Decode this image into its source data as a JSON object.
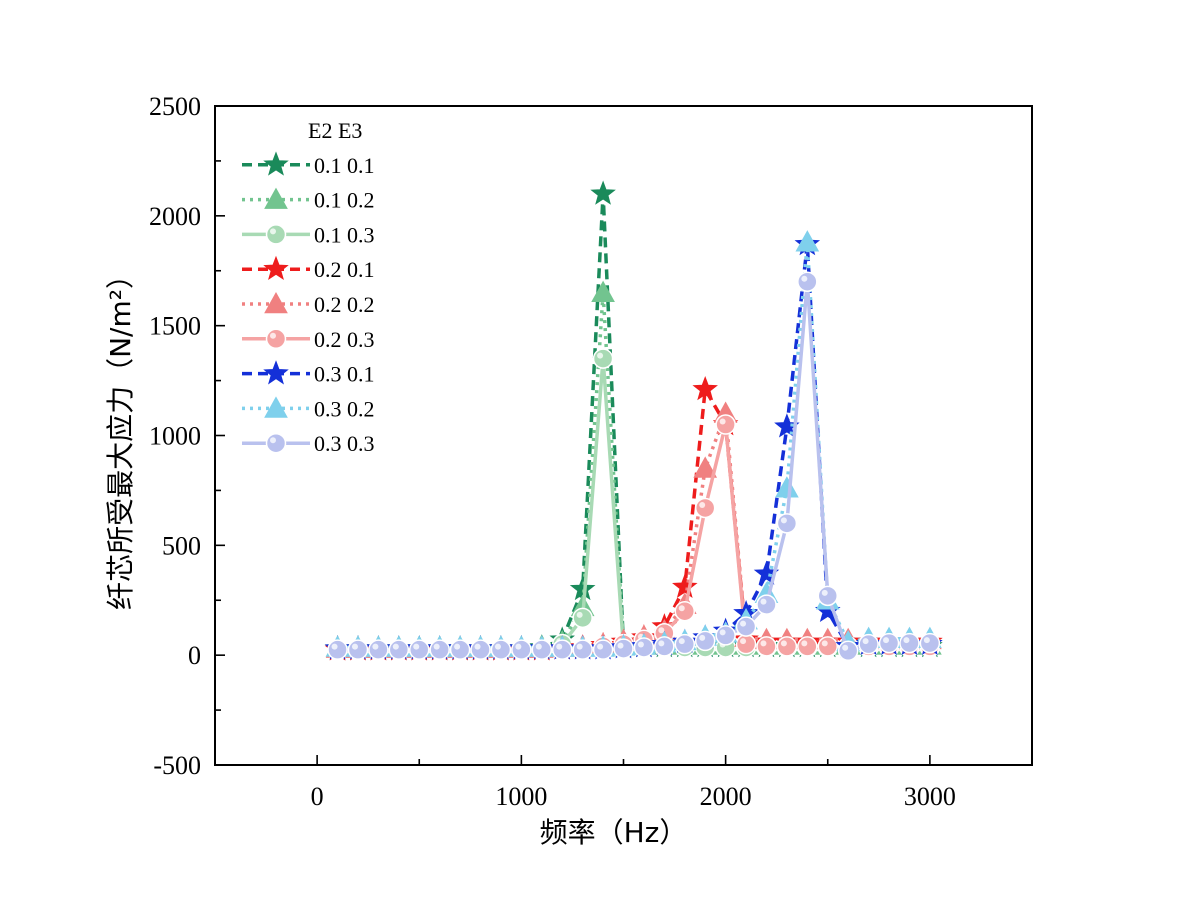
{
  "chart_data": {
    "type": "line",
    "xlabel": "频率（Hz）",
    "ylabel": "纤芯所受最大应力（N/m²）",
    "xlim": [
      -500,
      3500
    ],
    "ylim": [
      -500,
      2500
    ],
    "xticks": [
      "0",
      "1000",
      "2000",
      "3000"
    ],
    "yticks": [
      "-500",
      "0",
      "500",
      "1000",
      "1500",
      "2000",
      "2500"
    ],
    "legend": {
      "placement": "top-left",
      "header": [
        "E2",
        "E3"
      ]
    },
    "x": [
      100,
      200,
      300,
      400,
      500,
      600,
      700,
      800,
      900,
      1000,
      1100,
      1200,
      1300,
      1400,
      1500,
      1600,
      1700,
      1800,
      1900,
      2000,
      2100,
      2200,
      2300,
      2400,
      2500,
      2600,
      2700,
      2800,
      2900,
      3000
    ],
    "series": [
      {
        "name": "0.1 0.1",
        "color": "#1a8a5a",
        "dash": "dash",
        "marker": "star",
        "values": [
          30,
          30,
          30,
          30,
          30,
          30,
          30,
          30,
          30,
          30,
          35,
          70,
          300,
          2100,
          40,
          40,
          40,
          40,
          40,
          40,
          40,
          40,
          40,
          40,
          40,
          40,
          40,
          40,
          40,
          40
        ]
      },
      {
        "name": "0.1 0.2",
        "color": "#72c48f",
        "dash": "dot",
        "marker": "triangle",
        "values": [
          35,
          35,
          35,
          35,
          35,
          35,
          35,
          35,
          35,
          35,
          40,
          60,
          220,
          1650,
          45,
          45,
          45,
          45,
          45,
          45,
          45,
          45,
          45,
          45,
          45,
          45,
          45,
          45,
          45,
          45
        ]
      },
      {
        "name": "0.1 0.3",
        "color": "#a8dab4",
        "dash": "solid",
        "marker": "circle",
        "values": [
          25,
          25,
          25,
          25,
          25,
          25,
          25,
          25,
          25,
          25,
          30,
          50,
          170,
          1350,
          35,
          35,
          35,
          35,
          35,
          35,
          35,
          35,
          35,
          35,
          35,
          35,
          35,
          35,
          35,
          35
        ]
      },
      {
        "name": "0.2 0.1",
        "color": "#ee1c1c",
        "dash": "dash",
        "marker": "star",
        "values": [
          25,
          25,
          25,
          25,
          25,
          25,
          25,
          25,
          25,
          25,
          25,
          30,
          35,
          45,
          60,
          80,
          130,
          310,
          1210,
          1050,
          70,
          60,
          60,
          60,
          60,
          60,
          60,
          60,
          60,
          60
        ]
      },
      {
        "name": "0.2 0.2",
        "color": "#f08080",
        "dash": "dot",
        "marker": "triangle",
        "values": [
          30,
          30,
          30,
          30,
          30,
          30,
          30,
          30,
          30,
          30,
          30,
          35,
          40,
          50,
          65,
          85,
          110,
          230,
          850,
          1100,
          80,
          70,
          70,
          70,
          70,
          70,
          70,
          70,
          70,
          70
        ]
      },
      {
        "name": "0.2 0.3",
        "color": "#f5a3a3",
        "dash": "solid",
        "marker": "circle",
        "values": [
          20,
          20,
          20,
          20,
          20,
          20,
          20,
          20,
          20,
          20,
          20,
          25,
          30,
          40,
          50,
          70,
          100,
          200,
          670,
          1050,
          50,
          40,
          40,
          40,
          40,
          40,
          40,
          40,
          40,
          40
        ]
      },
      {
        "name": "0.3 0.1",
        "color": "#1430d8",
        "dash": "dash",
        "marker": "star",
        "values": [
          30,
          30,
          30,
          30,
          30,
          30,
          30,
          30,
          30,
          30,
          30,
          30,
          30,
          30,
          35,
          40,
          50,
          60,
          80,
          110,
          190,
          370,
          1040,
          1870,
          200,
          40,
          50,
          50,
          50,
          50
        ]
      },
      {
        "name": "0.3 0.2",
        "color": "#7fd0ec",
        "dash": "dot",
        "marker": "triangle",
        "values": [
          35,
          35,
          35,
          35,
          35,
          35,
          35,
          35,
          35,
          35,
          35,
          35,
          35,
          35,
          40,
          45,
          55,
          65,
          85,
          100,
          160,
          280,
          760,
          1880,
          250,
          60,
          75,
          75,
          75,
          75
        ]
      },
      {
        "name": "0.3 0.3",
        "color": "#b9c1ee",
        "dash": "solid",
        "marker": "circle",
        "values": [
          25,
          25,
          25,
          25,
          25,
          25,
          25,
          25,
          25,
          25,
          25,
          25,
          25,
          25,
          30,
          35,
          40,
          50,
          65,
          90,
          130,
          230,
          600,
          1700,
          270,
          20,
          50,
          55,
          55,
          55
        ]
      }
    ]
  }
}
